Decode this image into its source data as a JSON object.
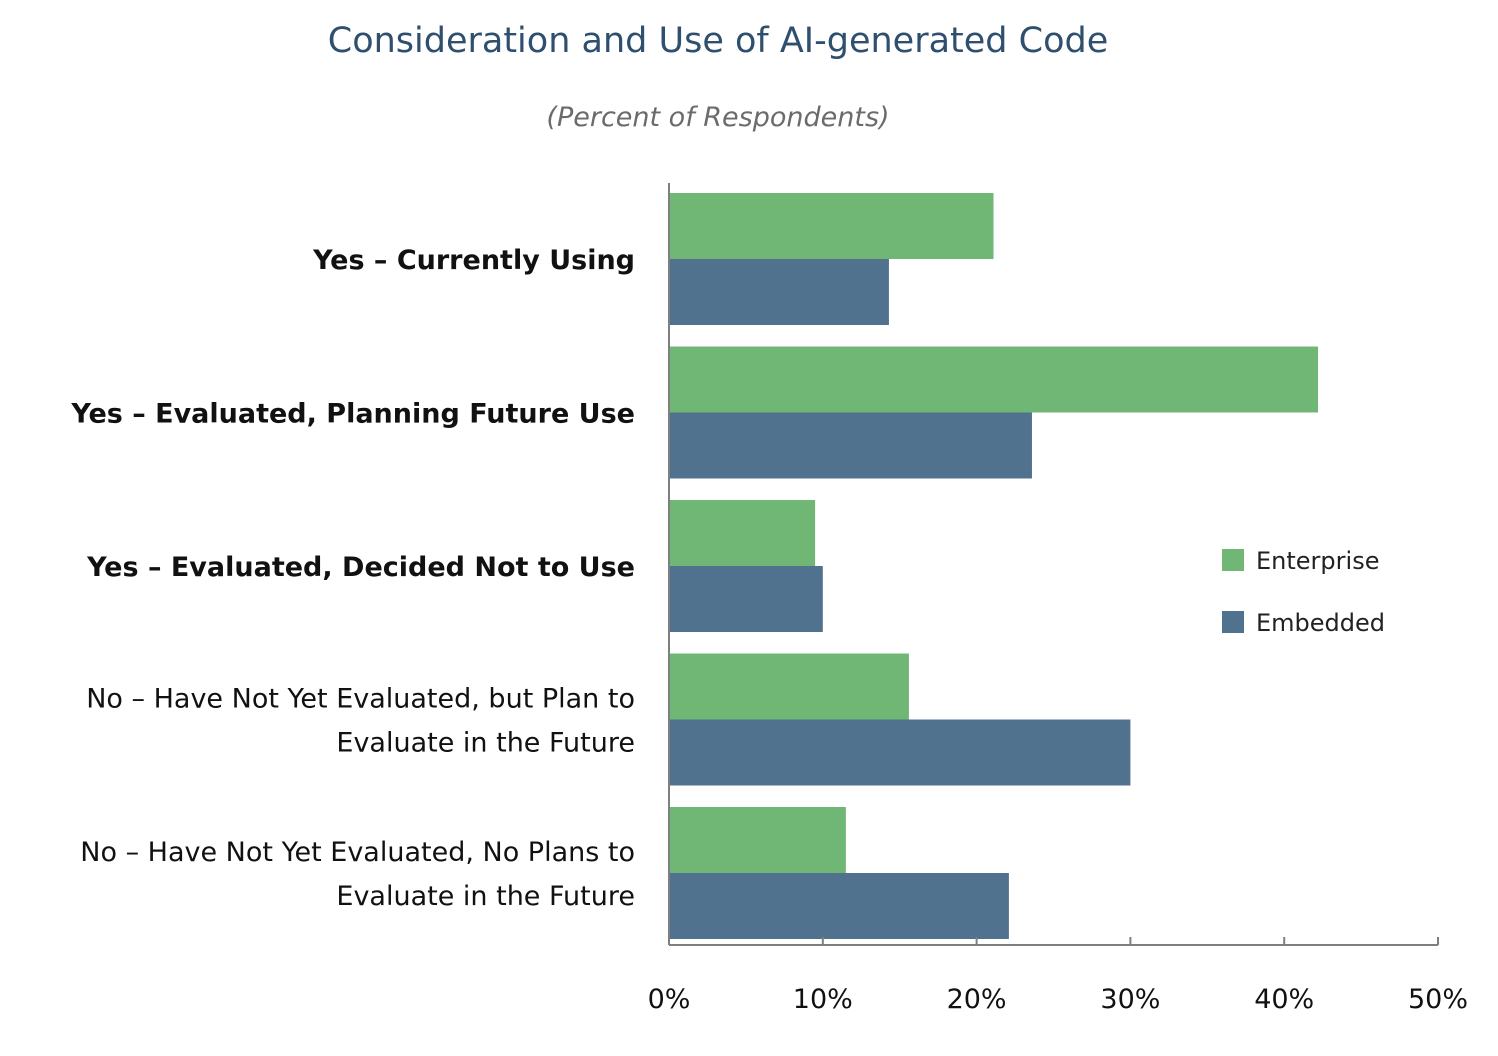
{
  "chart_data": {
    "type": "bar",
    "orientation": "horizontal",
    "title": "Consideration and Use of AI-generated Code",
    "subtitle": "(Percent of Respondents)",
    "categories": [
      {
        "lines": [
          "Yes – Currently Using"
        ],
        "bold": true
      },
      {
        "lines": [
          "Yes – Evaluated, Planning Future Use"
        ],
        "bold": true
      },
      {
        "lines": [
          "Yes – Evaluated, Decided Not to Use"
        ],
        "bold": true
      },
      {
        "lines": [
          "No – Have Not Yet Evaluated, but Plan to",
          "Evaluate in the Future"
        ],
        "bold": false
      },
      {
        "lines": [
          "No – Have Not Yet Evaluated, No Plans to",
          "Evaluate in the Future"
        ],
        "bold": false
      }
    ],
    "series": [
      {
        "name": "Enterprise",
        "color": "#70b776",
        "values": [
          21.1,
          42.2,
          9.5,
          15.6,
          11.5
        ]
      },
      {
        "name": "Embedded",
        "color": "#51728f",
        "values": [
          14.3,
          23.6,
          10.0,
          30.0,
          22.1
        ]
      }
    ],
    "xlim": [
      0,
      50
    ],
    "xticks": [
      0,
      10,
      20,
      30,
      40,
      50
    ],
    "tick_suffix": "%",
    "legend": "right-middle",
    "grid": false
  }
}
